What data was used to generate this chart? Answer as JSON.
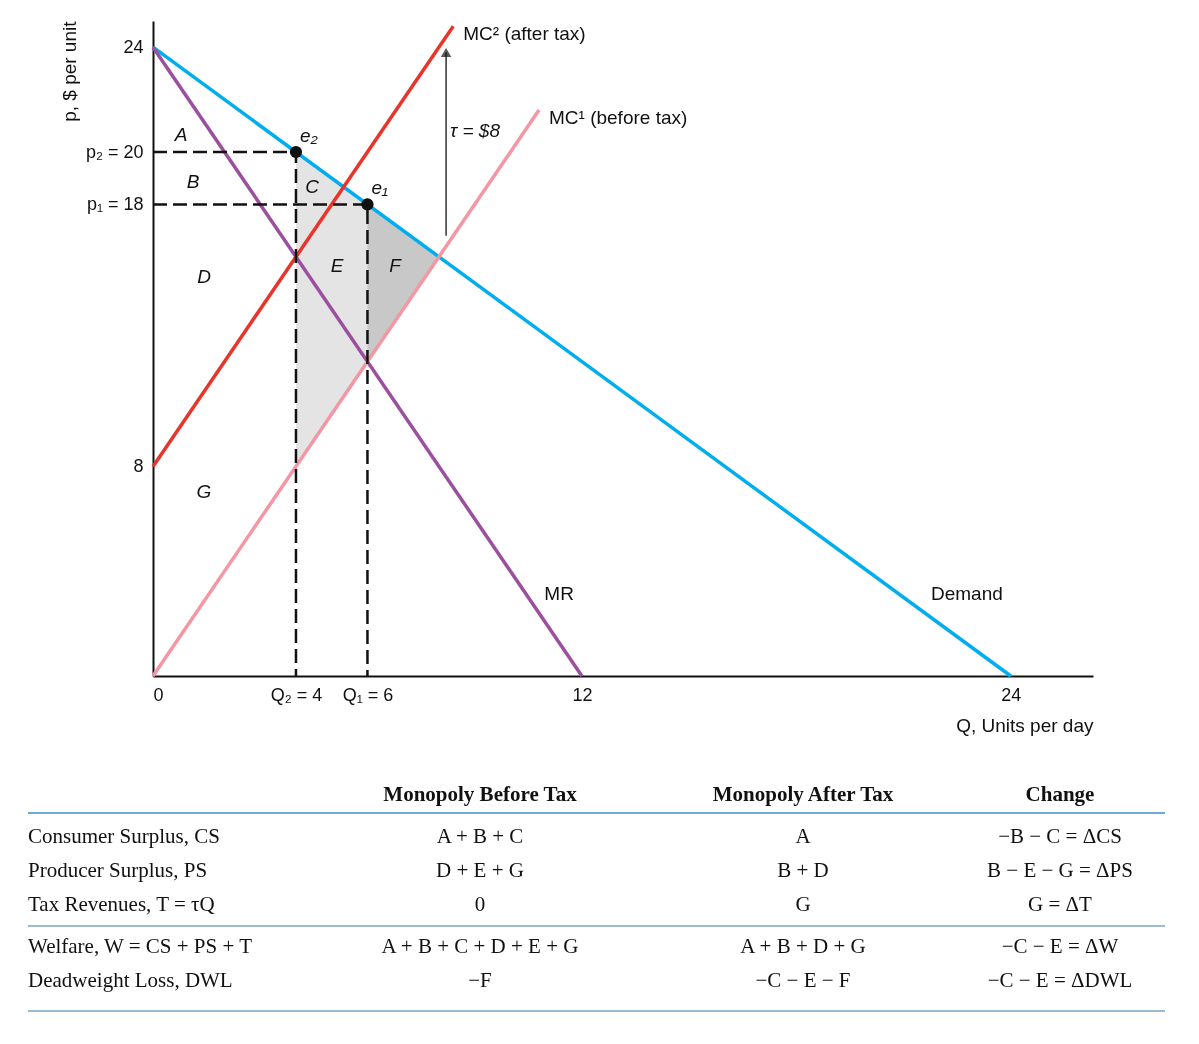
{
  "chart_data": [
    {
      "type": "line",
      "xlabel": "Q, Units per day",
      "ylabel": "p, $ per unit",
      "xlim": [
        0,
        26.3
      ],
      "ylim": [
        0,
        25
      ],
      "xticks": [
        0,
        {
          "value": 4,
          "label": "Q₂ = 4"
        },
        {
          "value": 6,
          "label": "Q₁ = 6"
        },
        12,
        24
      ],
      "yticks": [
        8,
        {
          "value": 18,
          "label": "p₁ = 18"
        },
        {
          "value": 20,
          "label": "p₂ = 20"
        },
        24
      ],
      "grid": false,
      "series": [
        {
          "type": "area",
          "color": "#e4e4e4",
          "x": [
            4,
            6,
            8,
            6,
            4
          ],
          "values": [
            20,
            18,
            16,
            12,
            8
          ]
        },
        {
          "type": "area",
          "color": "#c8c8c8",
          "x": [
            6,
            8,
            6
          ],
          "values": [
            18,
            16,
            12
          ]
        },
        {
          "type": "line",
          "name": "Demand",
          "color": "#00aeef",
          "x": [
            0,
            24
          ],
          "values": [
            24,
            0
          ]
        },
        {
          "type": "line",
          "name": "MR",
          "color": "#9b4f9f",
          "x": [
            0,
            12
          ],
          "values": [
            24,
            0
          ]
        },
        {
          "type": "line",
          "name": "MC¹ (before tax)",
          "color": "#f497a4",
          "x": [
            0,
            10.8
          ],
          "values": [
            0,
            21.6
          ]
        },
        {
          "type": "line",
          "name": "MC² (after tax)",
          "color": "#e8342a",
          "x": [
            0,
            8.4
          ],
          "values": [
            8,
            24.8
          ]
        },
        {
          "type": "line",
          "color": "#111111",
          "line_style": "dashed",
          "x": [
            0,
            4,
            4
          ],
          "values": [
            20,
            20,
            0
          ]
        },
        {
          "type": "line",
          "color": "#111111",
          "line_style": "dashed",
          "x": [
            0,
            6,
            6
          ],
          "values": [
            18,
            18,
            0
          ]
        },
        {
          "type": "line",
          "color": "#111111",
          "marker": "triangle",
          "x": [
            8.2,
            8.2
          ],
          "values": [
            16.8,
            23.8
          ]
        },
        {
          "type": "scatter",
          "color": "#111111",
          "marker": "circle",
          "x": [
            4,
            6
          ],
          "values": [
            20,
            18
          ]
        }
      ],
      "annotations": [
        "A",
        "B",
        "C",
        "D",
        "E",
        "F",
        "G",
        {
          "text": "e₂",
          "x": 4,
          "y": 20
        },
        {
          "text": "e₁",
          "x": 6,
          "y": 18
        },
        {
          "text": "τ = $8",
          "x": 8.2,
          "y": 20.2
        }
      ]
    },
    {
      "type": "other",
      "categories": [
        "Monopoly Before Tax",
        "Monopoly After Tax",
        "Change"
      ],
      "y_categories": [
        "Consumer Surplus, CS",
        "Producer Surplus, PS",
        "Tax Revenues, T = τQ",
        "Welfare, W = CS + PS + T",
        "Deadweight Loss, DWL"
      ],
      "cell_labels": [
        [
          "A + B + C",
          "A",
          "−B − C = ΔCS"
        ],
        [
          "D + E + G",
          "B + D",
          "B − E − G = ΔPS"
        ],
        [
          "0",
          "G",
          "G = ΔT"
        ],
        [
          "A + B + C + D + E + G",
          "A + B + D + G",
          "−C − E = ΔW"
        ],
        [
          "−F",
          "−C − E − F",
          "−C − E = ΔDWL"
        ]
      ]
    }
  ]
}
